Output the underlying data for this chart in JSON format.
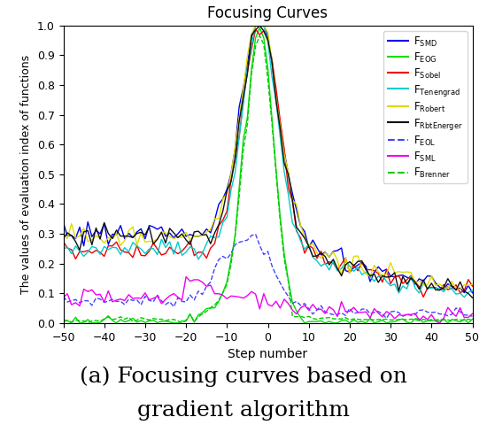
{
  "title": "Focusing Curves",
  "xlabel": "Step number",
  "ylabel": "The values of evaluation index of functions",
  "xlim": [
    -50,
    50
  ],
  "ylim": [
    0,
    1
  ],
  "xticks": [
    -50,
    -40,
    -30,
    -20,
    -10,
    0,
    10,
    20,
    30,
    40,
    50
  ],
  "yticks": [
    0,
    0.1,
    0.2,
    0.3,
    0.4,
    0.5,
    0.6,
    0.7,
    0.8,
    0.9,
    1
  ],
  "caption_line1": "(a) Focusing curves based on",
  "caption_line2": "gradient algorithm",
  "lines": [
    {
      "name": "SMD",
      "sub": "SMD",
      "color": "#0000EE",
      "lw": 1.0,
      "ls": "-"
    },
    {
      "name": "EOG",
      "sub": "EOG",
      "color": "#00DD00",
      "lw": 1.0,
      "ls": "-"
    },
    {
      "name": "Sobel",
      "sub": "Sobel",
      "color": "#EE0000",
      "lw": 1.0,
      "ls": "-"
    },
    {
      "name": "Tenengrad",
      "sub": "Tenengrad",
      "color": "#00CCCC",
      "lw": 1.0,
      "ls": "-"
    },
    {
      "name": "Robert",
      "sub": "Robert",
      "color": "#DDDD00",
      "lw": 1.0,
      "ls": "-"
    },
    {
      "name": "RbtEnerger",
      "sub": "RbtEnerger",
      "color": "#111111",
      "lw": 1.0,
      "ls": "-"
    },
    {
      "name": "EOL",
      "sub": "EOL",
      "color": "#4444FF",
      "lw": 1.0,
      "ls": "--"
    },
    {
      "name": "SML",
      "sub": "SML",
      "color": "#EE00EE",
      "lw": 1.0,
      "ls": "-"
    },
    {
      "name": "Brenner",
      "sub": "Brenner",
      "color": "#00CC00",
      "lw": 1.0,
      "ls": "--"
    }
  ],
  "background_color": "#FFFFFF"
}
